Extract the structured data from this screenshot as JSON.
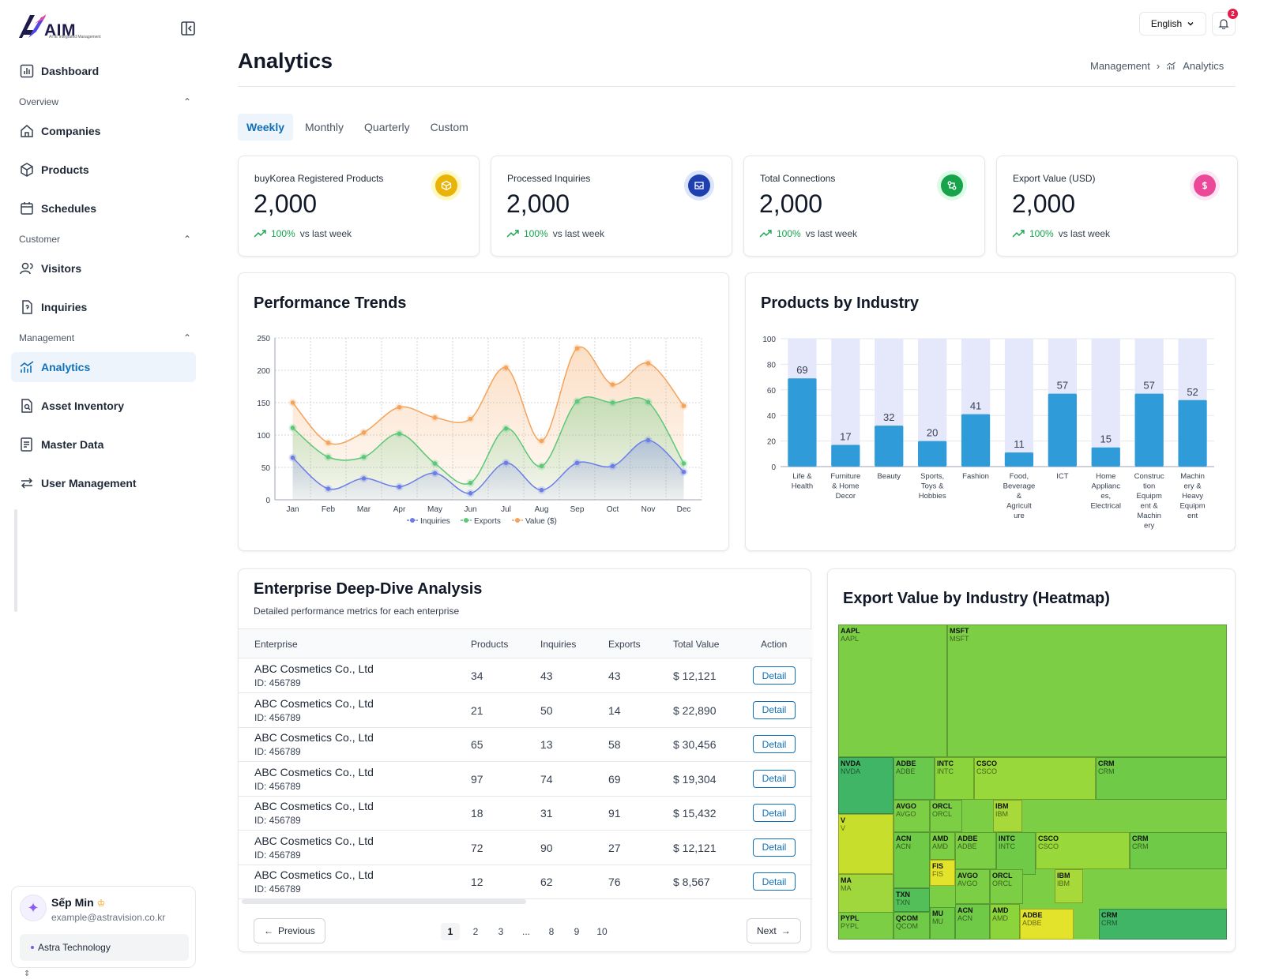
{
  "brand": {
    "name": "AIM",
    "tagline": "AITE Integrated Management"
  },
  "sidebar": {
    "dashboard": "Dashboard",
    "sections": {
      "overview": "Overview",
      "customer": "Customer",
      "management": "Management"
    },
    "items": {
      "companies": "Companies",
      "products": "Products",
      "schedules": "Schedules",
      "visitors": "Visitors",
      "inquiries": "Inquiries",
      "analytics": "Analytics",
      "asset_inventory": "Asset Inventory",
      "master_data": "Master Data",
      "user_management": "User Management"
    },
    "active": "analytics"
  },
  "user": {
    "name": "Sếp Min",
    "email": "example@astravision.co.kr",
    "org": "Astra Technology"
  },
  "header": {
    "language": "English",
    "notifications": "2"
  },
  "page": {
    "title": "Analytics",
    "breadcrumb": [
      "Management",
      "Analytics"
    ]
  },
  "tabs": [
    "Weekly",
    "Monthly",
    "Quarterly",
    "Custom"
  ],
  "active_tab": "Weekly",
  "stats": [
    {
      "label": "buyKorea Registered Products",
      "value": "2,000",
      "pct": "100%",
      "period": "vs last week",
      "icon": "box-icon",
      "color": "#eab308",
      "ring": "#fef9c3"
    },
    {
      "label": "Processed Inquiries",
      "value": "2,000",
      "pct": "100%",
      "period": "vs last week",
      "icon": "inbox-icon",
      "color": "#1e40af",
      "ring": "#dbe4fb"
    },
    {
      "label": "Total Connections",
      "value": "2,000",
      "pct": "100%",
      "period": "vs last week",
      "icon": "connection-icon",
      "color": "#16a34a",
      "ring": "#dcfce7"
    },
    {
      "label": "Export Value (USD)",
      "value": "2,000",
      "pct": "100%",
      "period": "vs last week",
      "icon": "dollar-icon",
      "color": "#ec4899",
      "ring": "#fce7f3"
    }
  ],
  "performance": {
    "title": "Performance Trends"
  },
  "industry": {
    "title": "Products by Industry"
  },
  "enterprise": {
    "title": "Enterprise Deep-Dive Analysis",
    "subtitle": "Detailed performance metrics for each enterprise",
    "columns": [
      "Enterprise",
      "Products",
      "Inquiries",
      "Exports",
      "Total Value",
      "Action"
    ],
    "rows": [
      {
        "name": "ABC Cosmetics Co., Ltd",
        "id": "ID: 456789",
        "products": "34",
        "inquiries": "43",
        "exports": "43",
        "value": "$ 12,121",
        "action": "Detail"
      },
      {
        "name": "ABC Cosmetics Co., Ltd",
        "id": "ID: 456789",
        "products": "21",
        "inquiries": "50",
        "exports": "14",
        "value": "$ 22,890",
        "action": "Detail"
      },
      {
        "name": "ABC Cosmetics Co., Ltd",
        "id": "ID: 456789",
        "products": "65",
        "inquiries": "13",
        "exports": "58",
        "value": "$ 30,456",
        "action": "Detail"
      },
      {
        "name": "ABC Cosmetics Co., Ltd",
        "id": "ID: 456789",
        "products": "97",
        "inquiries": "74",
        "exports": "69",
        "value": "$ 19,304",
        "action": "Detail"
      },
      {
        "name": "ABC Cosmetics Co., Ltd",
        "id": "ID: 456789",
        "products": "18",
        "inquiries": "31",
        "exports": "91",
        "value": "$ 15,432",
        "action": "Detail"
      },
      {
        "name": "ABC Cosmetics Co., Ltd",
        "id": "ID: 456789",
        "products": "72",
        "inquiries": "90",
        "exports": "27",
        "value": "$ 12,121",
        "action": "Detail"
      },
      {
        "name": "ABC Cosmetics Co., Ltd",
        "id": "ID: 456789",
        "products": "12",
        "inquiries": "62",
        "exports": "76",
        "value": "$ 8,567",
        "action": "Detail"
      }
    ],
    "pagination": {
      "previous": "Previous",
      "next": "Next",
      "pages": [
        "1",
        "2",
        "3",
        "...",
        "8",
        "9",
        "10"
      ],
      "current": "1"
    }
  },
  "heatmap": {
    "title": "Export Value by Industry (Heatmap)"
  },
  "chart_data": [
    {
      "type": "area",
      "title": "Performance Trends",
      "categories": [
        "Jan",
        "Feb",
        "Mar",
        "Apr",
        "May",
        "Jun",
        "Jul",
        "Aug",
        "Sep",
        "Oct",
        "Nov",
        "Dec"
      ],
      "ylim": [
        0,
        250
      ],
      "yticks": [
        0,
        50,
        100,
        150,
        200,
        250
      ],
      "grid": true,
      "legend": "bottom-center",
      "series": [
        {
          "name": "Inquiries",
          "color": "#6b7ee8",
          "values": [
            65,
            17,
            33,
            20,
            41,
            10,
            57,
            15,
            57,
            52,
            92,
            43
          ]
        },
        {
          "name": "Exports",
          "color": "#5dc77a",
          "values": [
            111,
            66,
            66,
            102,
            56,
            26,
            110,
            52,
            152,
            150,
            151,
            56
          ]
        },
        {
          "name": "Value ($)",
          "color": "#f4a35a",
          "values": [
            150,
            88,
            104,
            143,
            127,
            125,
            204,
            91,
            234,
            178,
            211,
            145
          ]
        }
      ]
    },
    {
      "type": "bar",
      "title": "Products by Industry",
      "categories": [
        "Life & Health",
        "Furniture & Home Decor",
        "Beauty",
        "Sports, Toys & Hobbies",
        "Fashion",
        "Food, Beverage & Agriculture",
        "ICT",
        "Home Appliances, Electrical",
        "Construction Equipment & Machinery",
        "Machinery & Heavy Equipment"
      ],
      "category_lines": [
        [
          "Life &",
          "Health"
        ],
        [
          "Furniture",
          "& Home",
          "Decor"
        ],
        [
          "Beauty"
        ],
        [
          "Sports,",
          "Toys &",
          "Hobbies"
        ],
        [
          "Fashion"
        ],
        [
          "Food,",
          "Beverage",
          "&",
          "Agricult",
          "ure"
        ],
        [
          "ICT"
        ],
        [
          "Home",
          "Applianc",
          "es,",
          "Electrical"
        ],
        [
          "Construc",
          "tion",
          "Equipm",
          "ent &",
          "Machin",
          "ery"
        ],
        [
          "Machin",
          "ery &",
          "Heavy",
          "Equipm",
          "ent"
        ]
      ],
      "values": [
        69,
        17,
        32,
        20,
        41,
        11,
        57,
        15,
        57,
        52
      ],
      "background_max": 100,
      "ylim": [
        0,
        100
      ],
      "yticks": [
        0,
        20,
        40,
        60,
        80,
        100
      ],
      "color": "#2f9bd8"
    },
    {
      "type": "heatmap",
      "title": "Export Value by Industry (Heatmap)",
      "cells": [
        {
          "label": "AAPL",
          "color": "#7ccf44"
        },
        {
          "label": "MSFT",
          "color": "#7ccf44"
        },
        {
          "label": "NVDA",
          "color": "#3fb565"
        },
        {
          "label": "ADBE",
          "color": "#68c94d"
        },
        {
          "label": "INTC",
          "color": "#8cd43c"
        },
        {
          "label": "CSCO",
          "color": "#98d83a"
        },
        {
          "label": "CRM",
          "color": "#6fca47"
        },
        {
          "label": "V",
          "color": "#c7df2c"
        },
        {
          "label": "AVGO",
          "color": "#7ccf44"
        },
        {
          "label": "ORCL",
          "color": "#7ccf44"
        },
        {
          "label": "IBM",
          "color": "#a6d939"
        },
        {
          "label": "MA",
          "color": "#9fd73d"
        },
        {
          "label": "ACN",
          "color": "#6fca47"
        },
        {
          "label": "AMD",
          "color": "#7ccf44"
        },
        {
          "label": "ADBE",
          "color": "#7ccf44"
        },
        {
          "label": "INTC",
          "color": "#6fca47"
        },
        {
          "label": "CSCO",
          "color": "#98d83a"
        },
        {
          "label": "CRM",
          "color": "#6fca47"
        },
        {
          "label": "FIS",
          "color": "#e2e32a"
        },
        {
          "label": "TXN",
          "color": "#52bf58"
        },
        {
          "label": "AVGO",
          "color": "#7ccf44"
        },
        {
          "label": "ORCL",
          "color": "#7ccf44"
        },
        {
          "label": "IBM",
          "color": "#a6d939"
        },
        {
          "label": "PYPL",
          "color": "#7ccf44"
        },
        {
          "label": "QCOM",
          "color": "#6fca47"
        },
        {
          "label": "MU",
          "color": "#6fca47"
        },
        {
          "label": "ACN",
          "color": "#6fca47"
        },
        {
          "label": "AMD",
          "color": "#8cd43c"
        },
        {
          "label": "ADBE",
          "color": "#e2e32a"
        },
        {
          "label": "CRM",
          "color": "#3fb565"
        }
      ]
    }
  ]
}
